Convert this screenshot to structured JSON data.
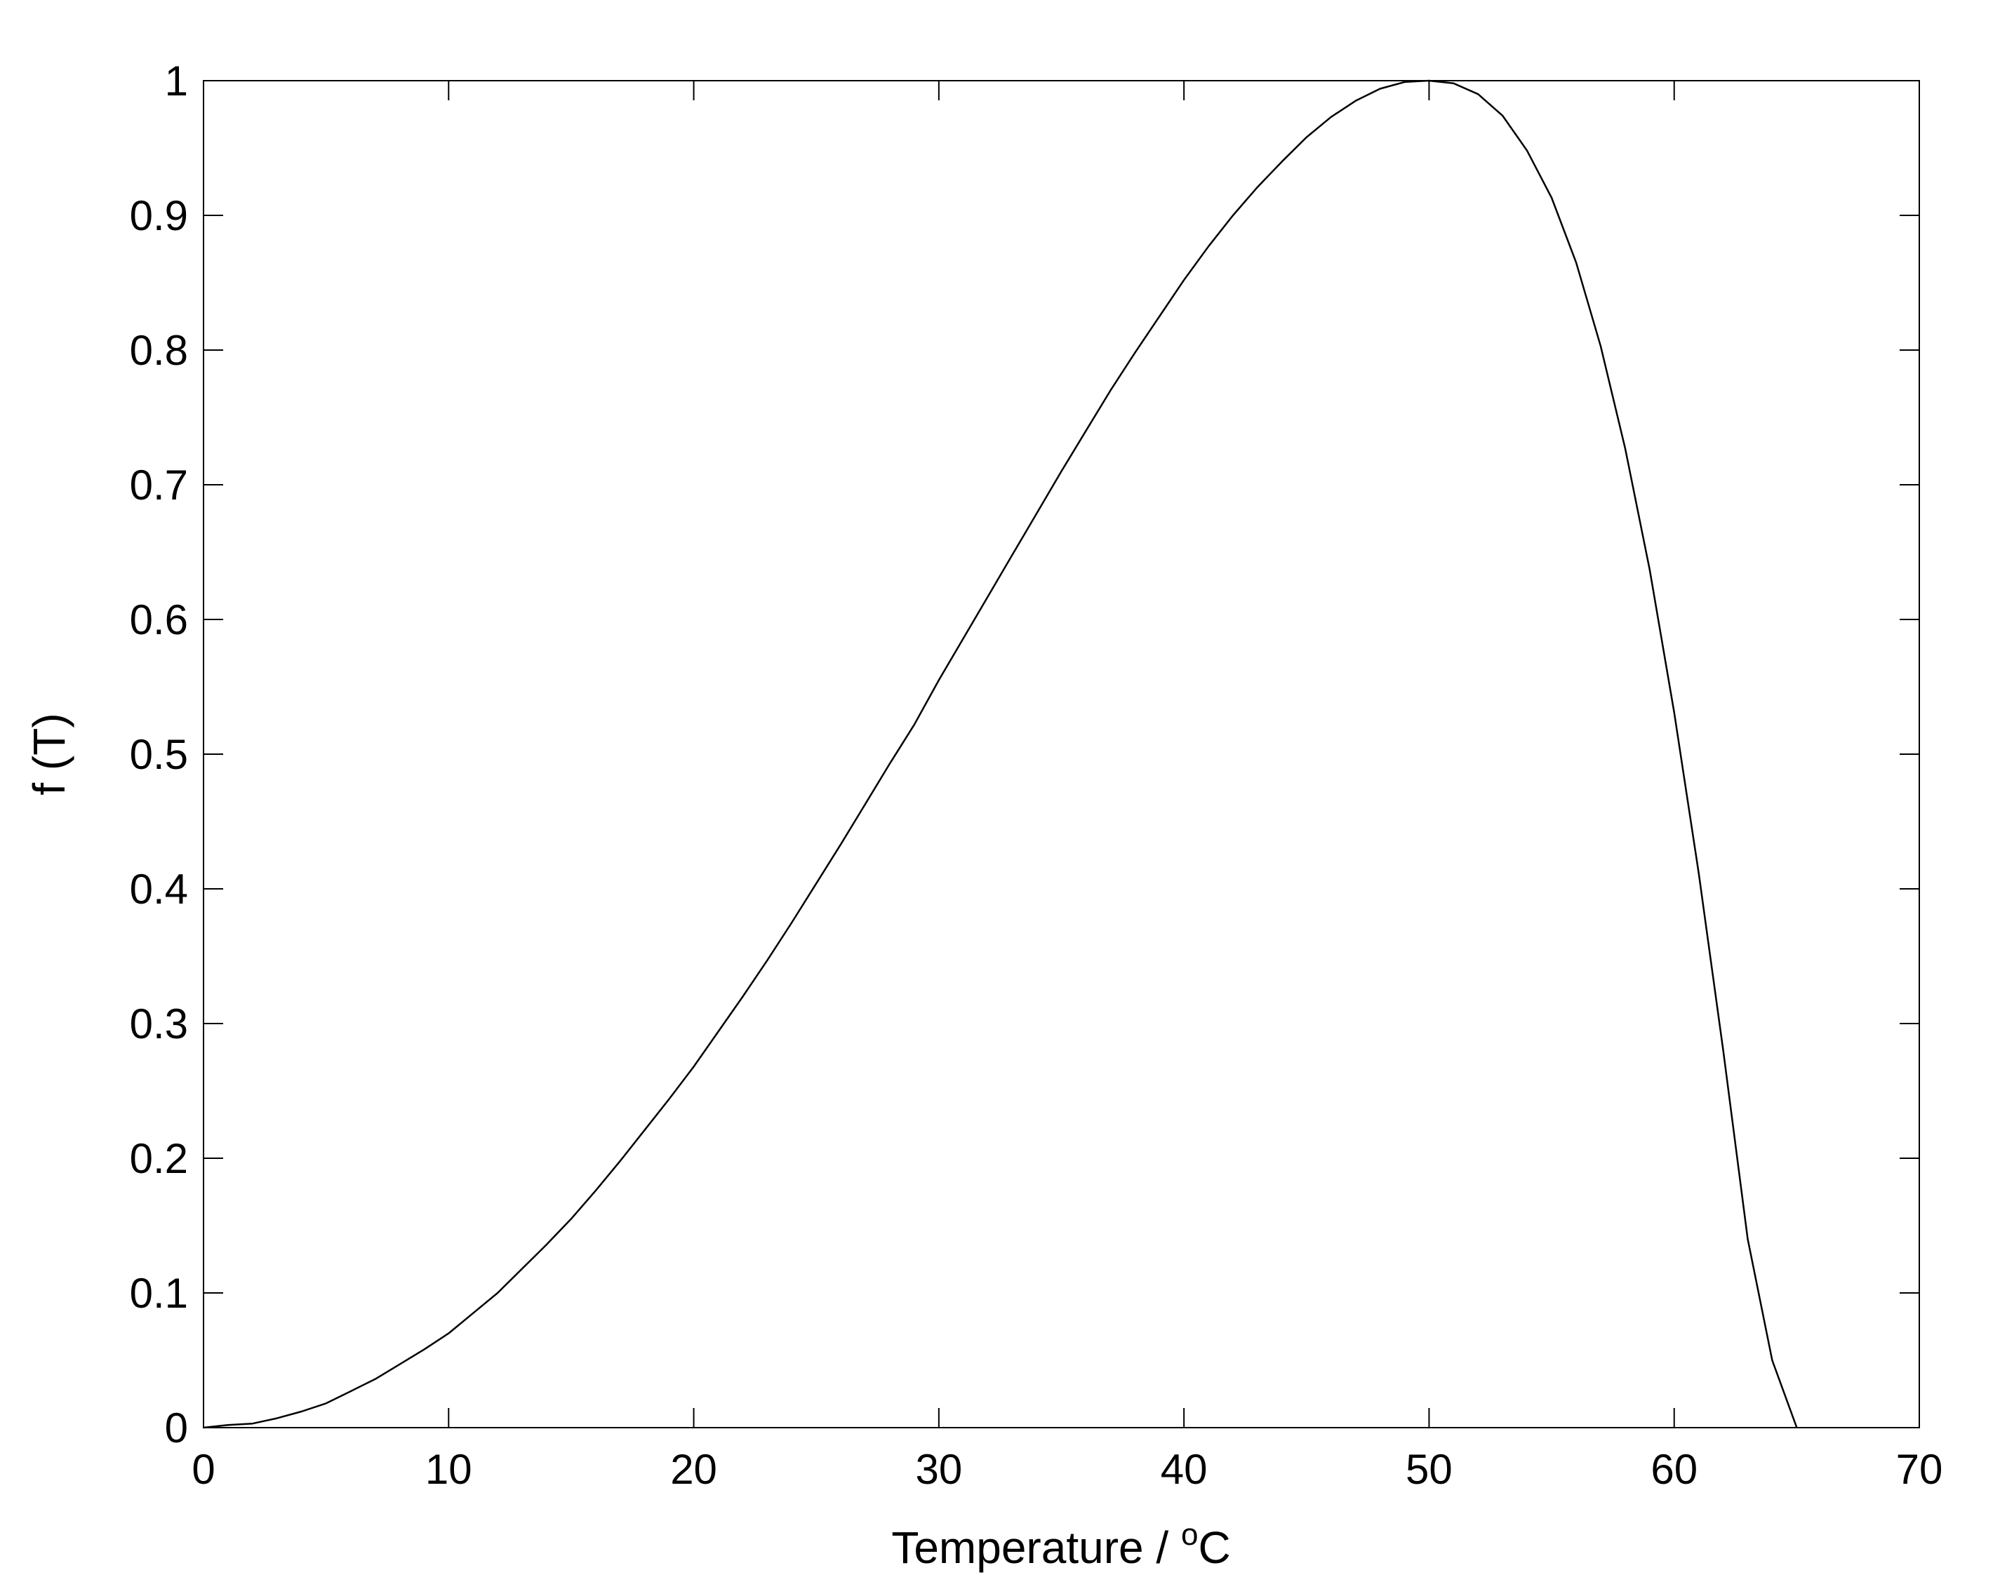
{
  "chart_data": {
    "type": "line",
    "title": "",
    "xlabel": "Temperature / ",
    "xlabel_superscript": "o",
    "xlabel_unit": "C",
    "ylabel": "f (T)",
    "xlim": [
      0,
      70
    ],
    "ylim": [
      0,
      1
    ],
    "xticks": [
      0,
      10,
      20,
      30,
      40,
      50,
      60,
      70
    ],
    "yticks": [
      0,
      0.1,
      0.2,
      0.3,
      0.4,
      0.5,
      0.6,
      0.7,
      0.8,
      0.9,
      1
    ],
    "xtick_labels": [
      "0",
      "10",
      "20",
      "30",
      "40",
      "50",
      "60",
      "70"
    ],
    "ytick_labels": [
      "0",
      "0.1",
      "0.2",
      "0.3",
      "0.4",
      "0.5",
      "0.6",
      "0.7",
      "0.8",
      "0.9",
      "1"
    ],
    "grid": false,
    "series": [
      {
        "color": "#000000",
        "x": [
          0,
          1,
          2,
          3,
          4,
          5,
          6,
          7,
          8,
          9,
          10,
          11,
          12,
          13,
          14,
          15,
          16,
          17,
          18,
          19,
          20,
          21,
          22,
          23,
          24,
          25,
          26,
          27,
          28,
          29,
          30,
          31,
          32,
          33,
          34,
          35,
          36,
          37,
          38,
          39,
          40,
          41,
          42,
          43,
          44,
          45,
          46,
          47,
          48,
          49,
          50,
          51,
          52,
          53,
          54,
          55,
          56,
          57,
          58,
          59,
          60,
          61,
          62,
          63,
          64,
          65
        ],
        "y": [
          0,
          0.002,
          0.003,
          0.007,
          0.012,
          0.018,
          0.027,
          0.036,
          0.047,
          0.058,
          0.07,
          0.085,
          0.1,
          0.118,
          0.136,
          0.155,
          0.176,
          0.198,
          0.221,
          0.244,
          0.268,
          0.294,
          0.32,
          0.347,
          0.375,
          0.404,
          0.433,
          0.463,
          0.493,
          0.522,
          0.555,
          0.586,
          0.617,
          0.648,
          0.679,
          0.71,
          0.74,
          0.77,
          0.798,
          0.825,
          0.852,
          0.877,
          0.9,
          0.921,
          0.94,
          0.958,
          0.973,
          0.985,
          0.994,
          0.999,
          1.0,
          0.998,
          0.99,
          0.974,
          0.948,
          0.913,
          0.865,
          0.803,
          0.727,
          0.637,
          0.531,
          0.412,
          0.28,
          0.14,
          0.05,
          0
        ]
      }
    ]
  }
}
